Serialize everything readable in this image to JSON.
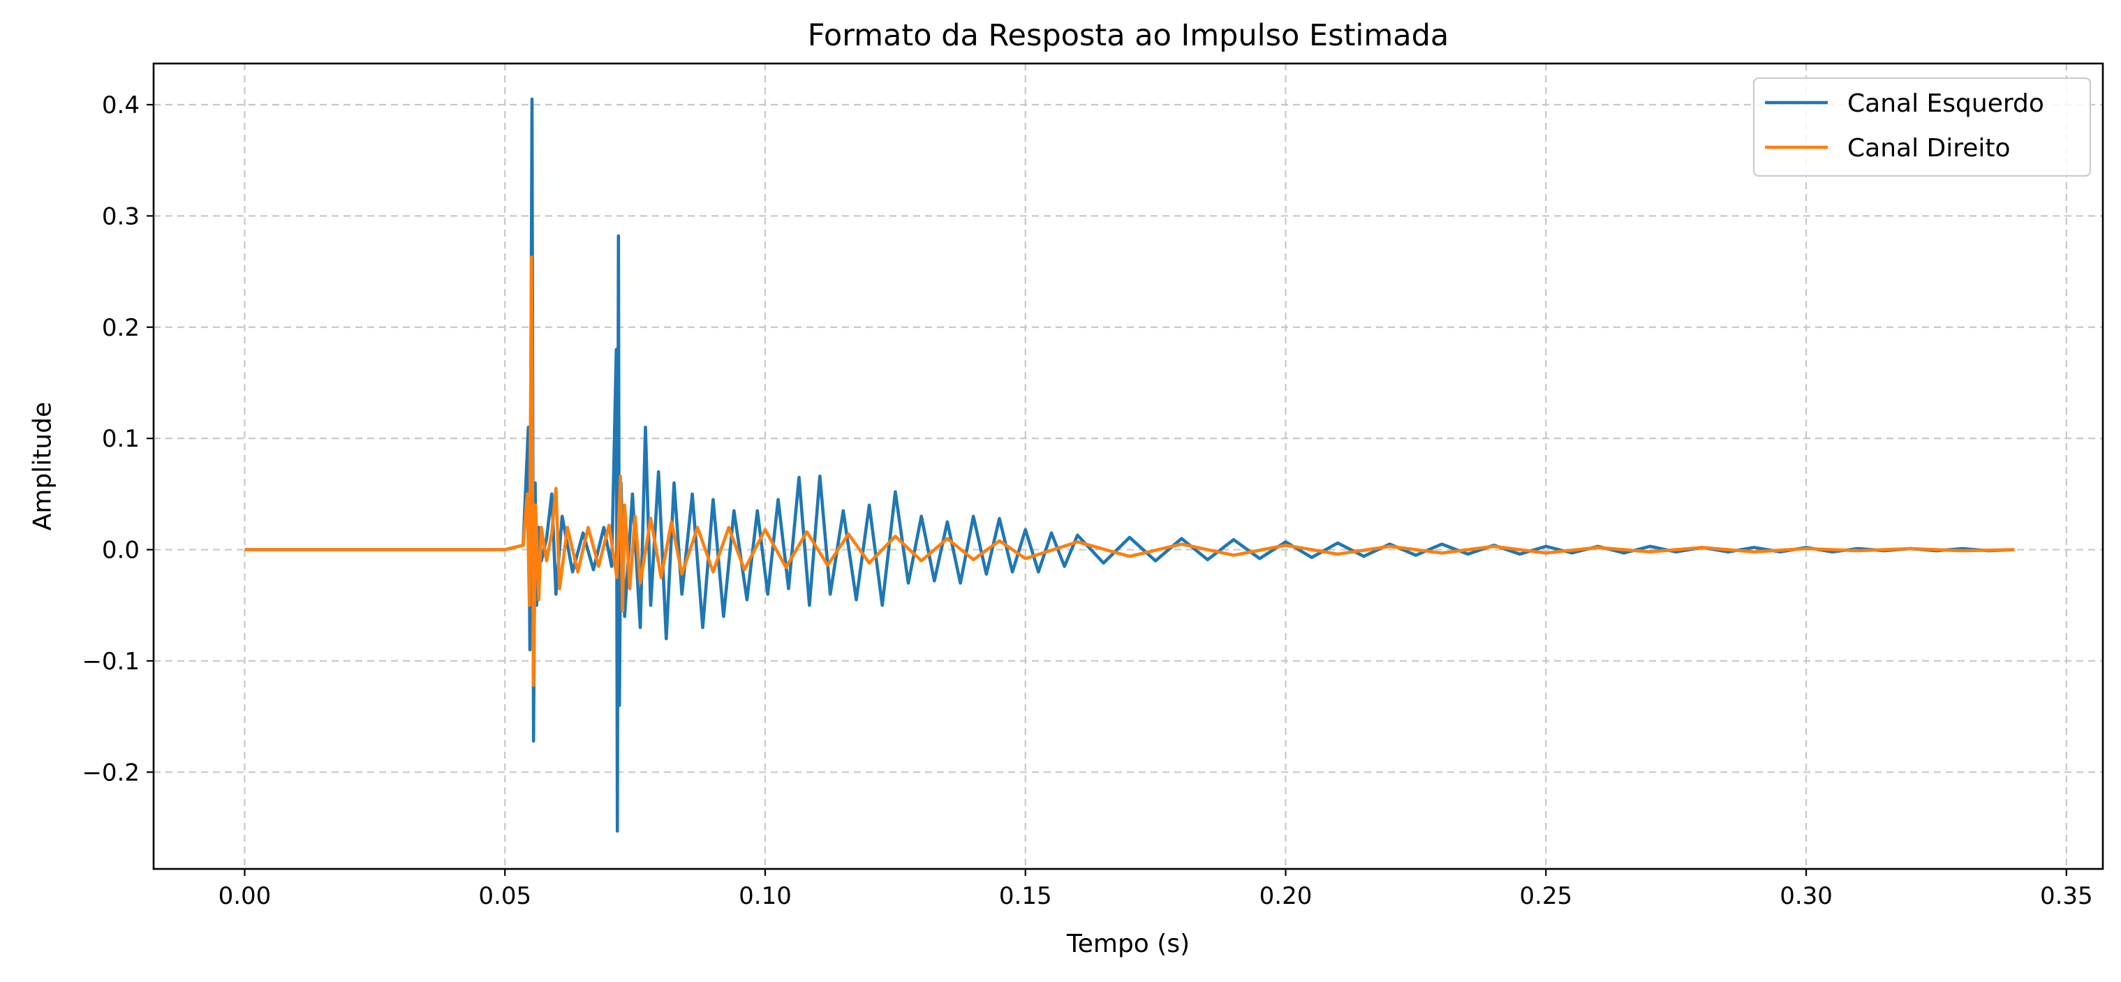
{
  "chart_data": {
    "type": "line",
    "title": "Formato da Resposta ao Impulso Estimada",
    "xlabel": "Tempo (s)",
    "ylabel": "Amplitude",
    "xlim": [
      -0.0175,
      0.357
    ],
    "ylim": [
      -0.287,
      0.437
    ],
    "xticks": [
      0.0,
      0.05,
      0.1,
      0.15,
      0.2,
      0.25,
      0.3,
      0.35
    ],
    "xtick_labels": [
      "0.00",
      "0.05",
      "0.10",
      "0.15",
      "0.20",
      "0.25",
      "0.30",
      "0.35"
    ],
    "yticks": [
      0.4,
      0.3,
      0.2,
      0.1,
      0.0,
      -0.1,
      -0.2
    ],
    "ytick_labels": [
      "0.4",
      "0.3",
      "0.2",
      "0.1",
      "0.0",
      "−0.1",
      "−0.2"
    ],
    "grid": true,
    "legend_position": "top-right",
    "series": [
      {
        "name": "Canal Esquerdo",
        "color": "#1f77b4",
        "x": [
          0.0,
          0.03,
          0.05,
          0.0535,
          0.0545,
          0.0548,
          0.0552,
          0.0555,
          0.0558,
          0.0561,
          0.0565,
          0.057,
          0.058,
          0.059,
          0.0598,
          0.061,
          0.063,
          0.065,
          0.067,
          0.069,
          0.0705,
          0.0714,
          0.0716,
          0.0718,
          0.072,
          0.0723,
          0.073,
          0.0745,
          0.076,
          0.077,
          0.078,
          0.0795,
          0.081,
          0.0825,
          0.084,
          0.086,
          0.088,
          0.09,
          0.092,
          0.094,
          0.0965,
          0.0985,
          0.1005,
          0.1025,
          0.1045,
          0.1065,
          0.1085,
          0.1105,
          0.1125,
          0.115,
          0.1175,
          0.12,
          0.1225,
          0.125,
          0.1275,
          0.13,
          0.1325,
          0.135,
          0.1375,
          0.14,
          0.1425,
          0.145,
          0.1475,
          0.15,
          0.1525,
          0.155,
          0.1575,
          0.16,
          0.165,
          0.17,
          0.175,
          0.18,
          0.185,
          0.19,
          0.195,
          0.2,
          0.205,
          0.21,
          0.215,
          0.22,
          0.225,
          0.23,
          0.235,
          0.24,
          0.245,
          0.25,
          0.255,
          0.26,
          0.265,
          0.27,
          0.275,
          0.28,
          0.285,
          0.29,
          0.295,
          0.3,
          0.305,
          0.31,
          0.315,
          0.32,
          0.325,
          0.33,
          0.335,
          0.34
        ],
        "y": [
          0.0,
          0.0,
          0.0,
          0.004,
          0.11,
          -0.09,
          0.405,
          -0.172,
          0.06,
          -0.05,
          0.02,
          -0.01,
          0.01,
          0.05,
          -0.04,
          0.03,
          -0.02,
          0.015,
          -0.018,
          0.02,
          -0.015,
          0.18,
          -0.253,
          0.282,
          -0.14,
          0.06,
          -0.06,
          0.05,
          -0.07,
          0.11,
          -0.05,
          0.07,
          -0.08,
          0.06,
          -0.04,
          0.05,
          -0.07,
          0.045,
          -0.06,
          0.035,
          -0.045,
          0.035,
          -0.04,
          0.045,
          -0.035,
          0.065,
          -0.05,
          0.066,
          -0.04,
          0.035,
          -0.045,
          0.04,
          -0.05,
          0.052,
          -0.03,
          0.03,
          -0.028,
          0.025,
          -0.03,
          0.03,
          -0.022,
          0.028,
          -0.02,
          0.018,
          -0.02,
          0.015,
          -0.015,
          0.013,
          -0.012,
          0.011,
          -0.01,
          0.01,
          -0.009,
          0.009,
          -0.008,
          0.007,
          -0.007,
          0.006,
          -0.006,
          0.005,
          -0.005,
          0.005,
          -0.004,
          0.004,
          -0.004,
          0.003,
          -0.003,
          0.003,
          -0.003,
          0.003,
          -0.002,
          0.002,
          -0.002,
          0.002,
          -0.002,
          0.002,
          -0.002,
          0.001,
          -0.001,
          0.001,
          -0.001,
          0.001,
          -0.001,
          0.0
        ]
      },
      {
        "name": "Canal Direito",
        "color": "#ff7f0e",
        "x": [
          0.0,
          0.03,
          0.05,
          0.0535,
          0.0543,
          0.0547,
          0.0551,
          0.0555,
          0.0559,
          0.0565,
          0.057,
          0.058,
          0.059,
          0.0598,
          0.0605,
          0.062,
          0.064,
          0.066,
          0.068,
          0.07,
          0.0715,
          0.0722,
          0.0726,
          0.073,
          0.074,
          0.075,
          0.076,
          0.078,
          0.08,
          0.082,
          0.084,
          0.087,
          0.09,
          0.093,
          0.096,
          0.1,
          0.104,
          0.108,
          0.112,
          0.116,
          0.12,
          0.125,
          0.13,
          0.135,
          0.14,
          0.145,
          0.15,
          0.16,
          0.17,
          0.18,
          0.19,
          0.2,
          0.21,
          0.22,
          0.23,
          0.24,
          0.25,
          0.26,
          0.27,
          0.28,
          0.29,
          0.3,
          0.31,
          0.32,
          0.33,
          0.34
        ],
        "y": [
          0.0,
          0.0,
          0.0,
          0.004,
          0.05,
          -0.05,
          0.263,
          -0.122,
          0.04,
          -0.045,
          0.02,
          -0.01,
          0.015,
          0.055,
          -0.035,
          0.02,
          -0.02,
          0.02,
          -0.015,
          0.022,
          -0.025,
          0.066,
          -0.055,
          0.04,
          -0.035,
          0.03,
          -0.03,
          0.028,
          -0.025,
          0.025,
          -0.022,
          0.02,
          -0.02,
          0.02,
          -0.018,
          0.018,
          -0.016,
          0.016,
          -0.014,
          0.014,
          -0.012,
          0.012,
          -0.01,
          0.01,
          -0.009,
          0.008,
          -0.008,
          0.007,
          -0.006,
          0.005,
          -0.005,
          0.004,
          -0.004,
          0.003,
          -0.003,
          0.003,
          -0.003,
          0.002,
          -0.002,
          0.002,
          -0.002,
          0.001,
          -0.001,
          0.001,
          -0.001,
          0.0
        ]
      }
    ]
  }
}
